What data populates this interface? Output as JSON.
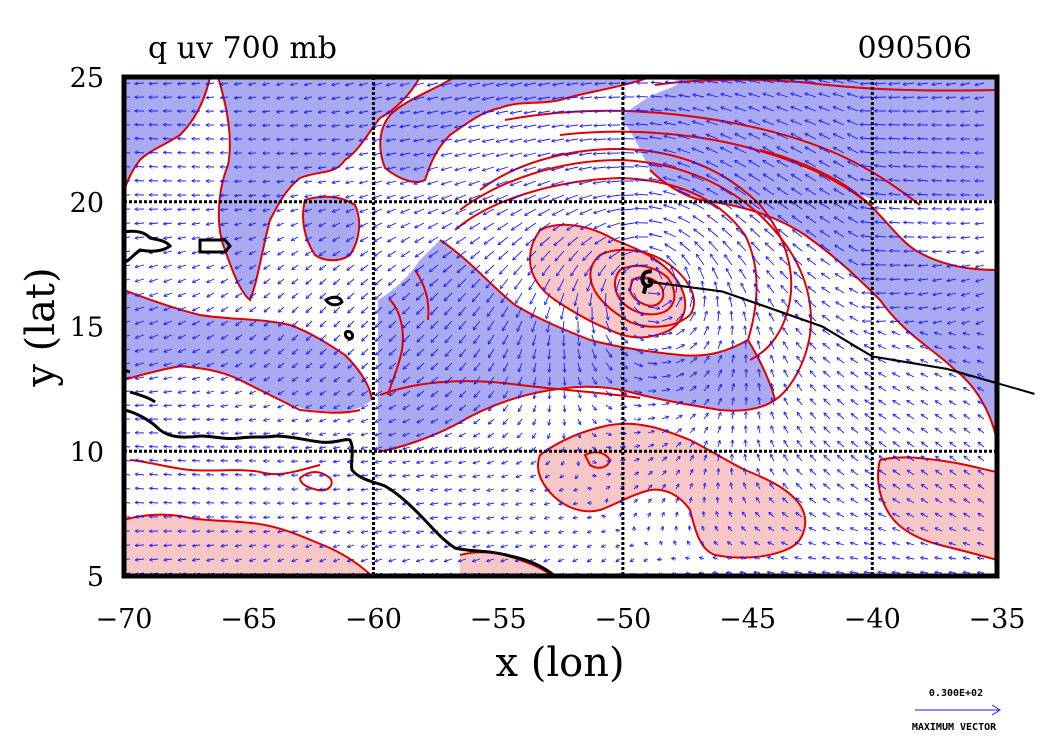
{
  "plot": {
    "title": "q uv 700 mb",
    "date": "090506",
    "xlabel": "x (lon)",
    "ylabel": "y (lat)"
  },
  "axes": {
    "x_range": [
      -70,
      -35
    ],
    "y_range": [
      5,
      25
    ],
    "x_ticks": [
      {
        "value": -70,
        "label": "−70"
      },
      {
        "value": -65,
        "label": "−65"
      },
      {
        "value": -60,
        "label": "−60"
      },
      {
        "value": -55,
        "label": "−55"
      },
      {
        "value": -50,
        "label": "−50"
      },
      {
        "value": -45,
        "label": "−45"
      },
      {
        "value": -40,
        "label": "−40"
      },
      {
        "value": -35,
        "label": "−35"
      }
    ],
    "y_ticks": [
      {
        "value": 5,
        "label": "5"
      },
      {
        "value": 10,
        "label": "10"
      },
      {
        "value": 15,
        "label": "15"
      },
      {
        "value": 20,
        "label": "20"
      },
      {
        "value": 25,
        "label": "25"
      }
    ],
    "grid_lon": [
      -60,
      -50,
      -40
    ],
    "grid_lat": [
      10,
      20
    ]
  },
  "legend": {
    "value": "0.300E+02",
    "label": "MAXIMUM VECTOR"
  },
  "colors": {
    "moist": "#aaaaf2",
    "dry": "#f7c6c6",
    "contour": "#e00000",
    "vector": "#1a1aff",
    "coast": "#000000"
  },
  "storm": {
    "center": [
      -49,
      16.8
    ],
    "track": [
      [
        -49,
        16.8
      ],
      [
        -46,
        16.4
      ],
      [
        -42,
        15
      ],
      [
        -40,
        13.8
      ],
      [
        -37,
        13.3
      ],
      [
        -33.5,
        12.3
      ]
    ]
  }
}
